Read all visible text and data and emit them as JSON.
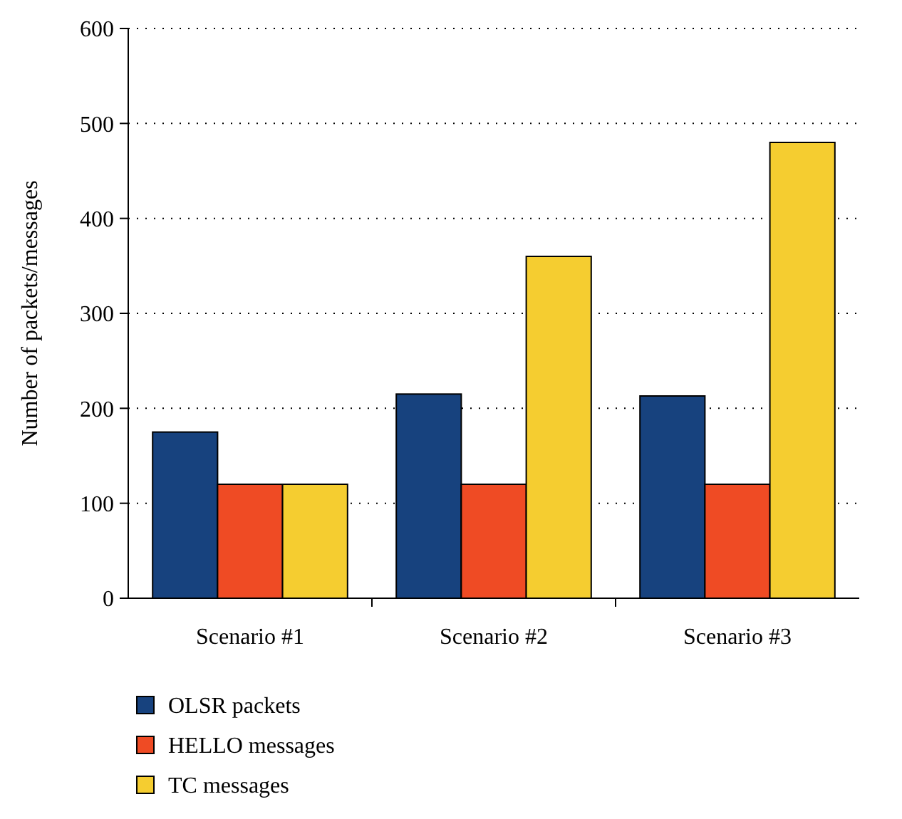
{
  "chart_data": {
    "type": "bar",
    "ylabel": "Number of packets/messages",
    "categories": [
      "Scenario #1",
      "Scenario #2",
      "Scenario #3"
    ],
    "series": [
      {
        "name": "OLSR packets",
        "color": "#17427e",
        "values": [
          175,
          215,
          213
        ]
      },
      {
        "name": "HELLO messages",
        "color": "#ef4b24",
        "values": [
          120,
          120,
          120
        ]
      },
      {
        "name": "TC messages",
        "color": "#f5cd30",
        "values": [
          120,
          360,
          480
        ]
      }
    ],
    "ylim": [
      0,
      600
    ],
    "yticks": [
      0,
      100,
      200,
      300,
      400,
      500,
      600
    ],
    "grid": "y",
    "legend": "bottom left"
  }
}
